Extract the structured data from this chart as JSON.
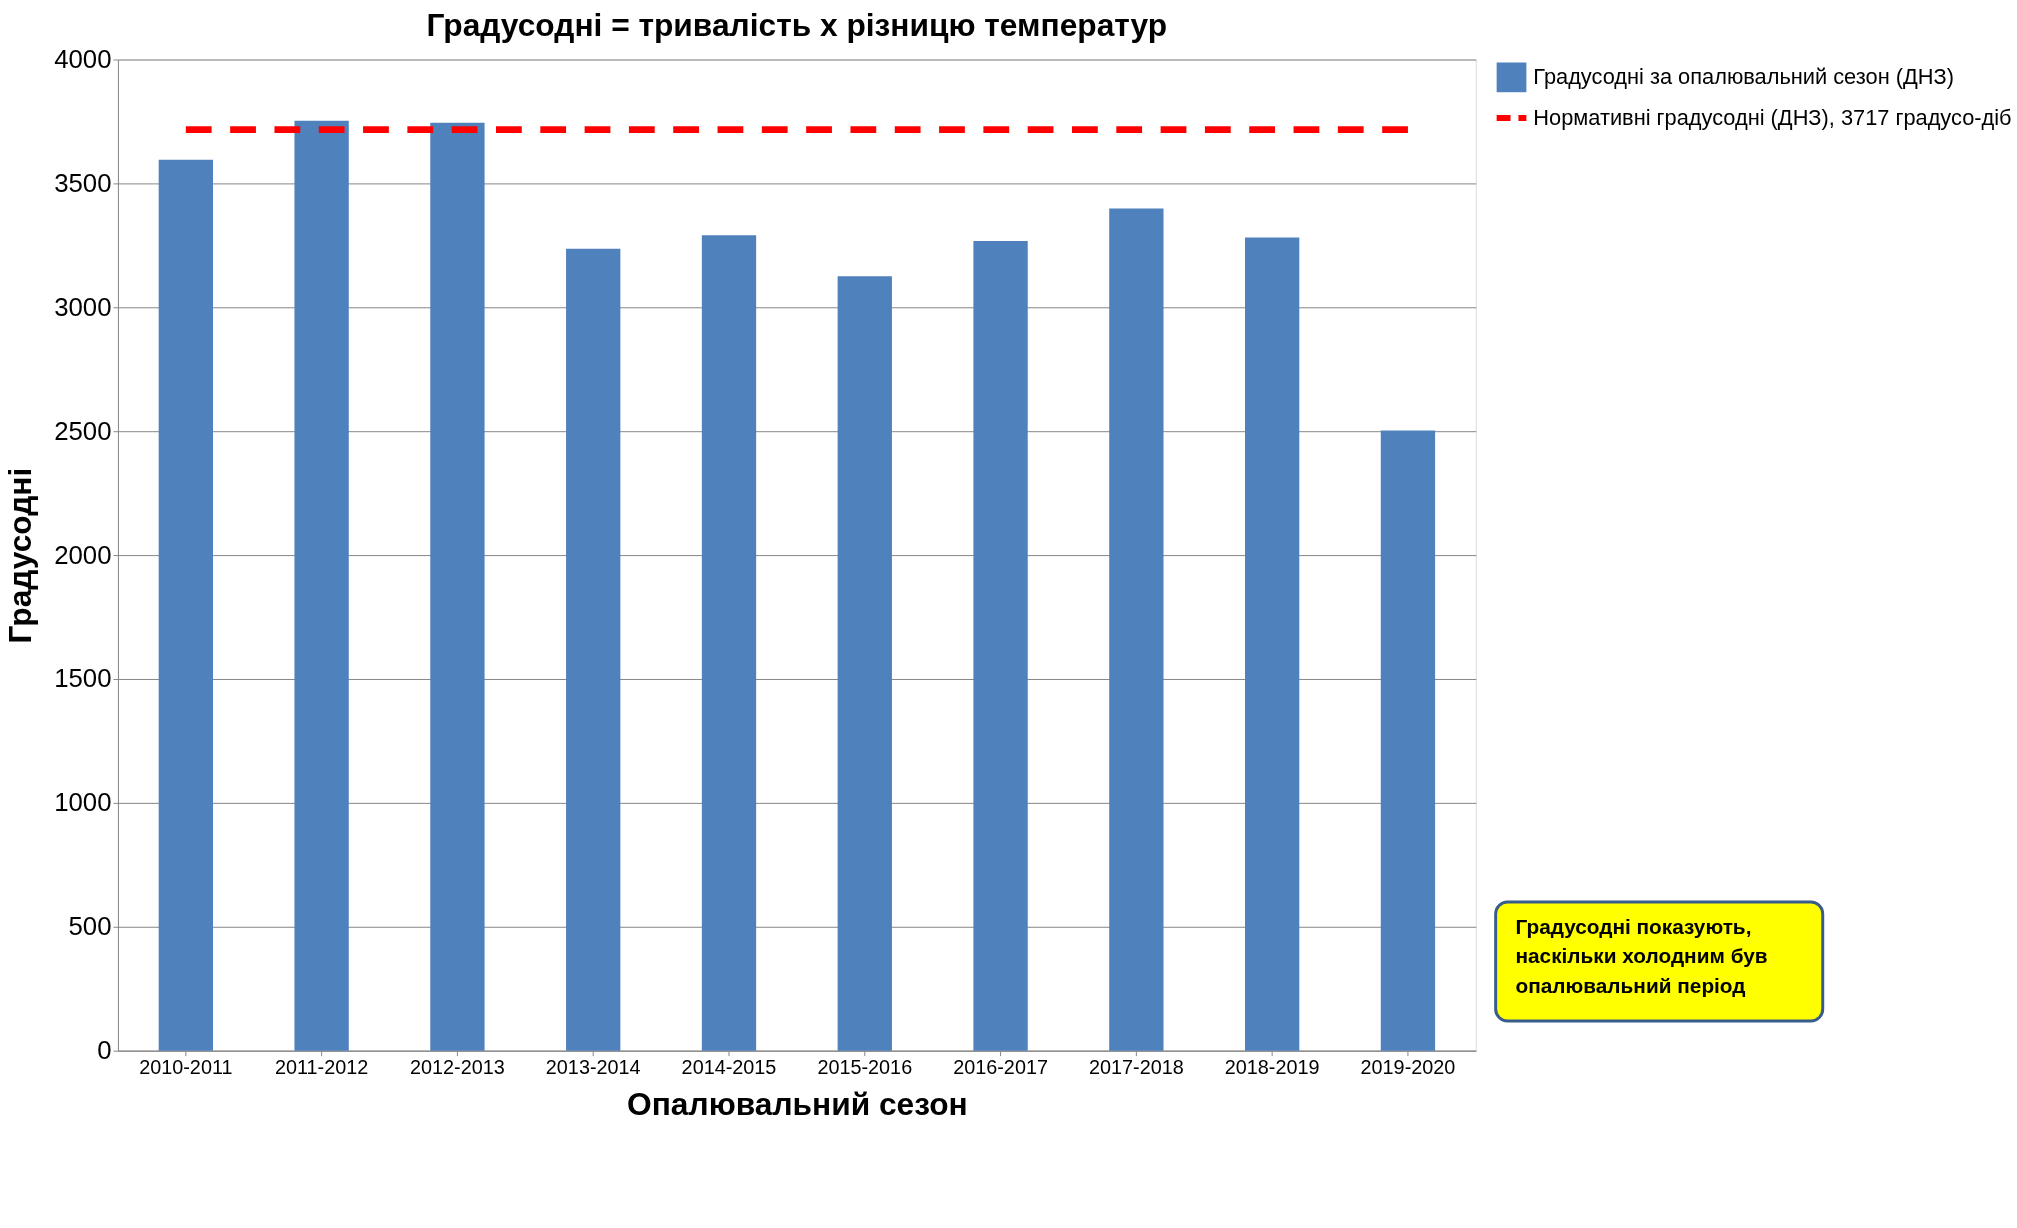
{
  "chart_data": {
    "type": "bar",
    "title": "Градусодні = тривалість x різницю температур",
    "xlabel": "Опалювальний сезон",
    "ylabel": "Градусодні",
    "categories": [
      "2010-2011",
      "2011-2012",
      "2012-2013",
      "2013-2014",
      "2014-2015",
      "2015-2016",
      "2016-2017",
      "2017-2018",
      "2018-2019",
      "2019-2020"
    ],
    "series": [
      {
        "name": "Градусодні за опалювальний сезон (ДНЗ)",
        "color": "#4f81bd",
        "values": [
          3595,
          3753,
          3745,
          3236,
          3291,
          3125,
          3268,
          3399,
          3282,
          2503
        ]
      },
      {
        "name": "Нормативні градусодні (ДНЗ), 3717 градусо-діб",
        "type": "line",
        "line_style": "dashed",
        "marker": "none",
        "color": "#ff0000",
        "values": [
          3717,
          3717,
          3717,
          3717,
          3717,
          3717,
          3717,
          3717,
          3717,
          3717
        ]
      }
    ],
    "ylim": [
      0,
      4000
    ],
    "yticks": [
      0,
      500,
      1000,
      1500,
      2000,
      2500,
      3000,
      3500,
      4000
    ],
    "grid": "y",
    "legend": "right",
    "annotations": [
      "Градусодні показують, наскільки холодним був опалювальний період"
    ]
  }
}
